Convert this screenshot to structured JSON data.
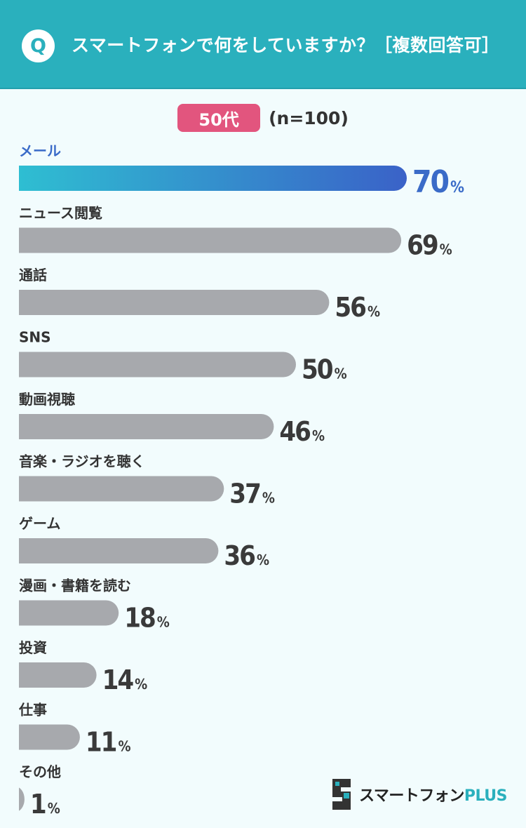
{
  "header": {
    "badge": "Q",
    "question": "スマートフォンで何をしていますか？［複数回答可］"
  },
  "group": {
    "label": "50代",
    "sample": "(n=100)"
  },
  "logo": {
    "main": "スマートフォン",
    "plus": "PLUS"
  },
  "colors": {
    "header": "#2ab0bd",
    "badge": "#e2557e",
    "bar": "#a7a9ad",
    "highlight_start": "#2ec1d2",
    "highlight_end": "#3a62c8"
  },
  "chart_data": {
    "type": "bar",
    "orientation": "horizontal",
    "unit": "%",
    "categories": [
      "メール",
      "ニュース閲覧",
      "通話",
      "SNS",
      "動画視聴",
      "音楽・ラジオを聴く",
      "ゲーム",
      "漫画・書籍を読む",
      "投資",
      "仕事",
      "その他"
    ],
    "values": [
      70,
      69,
      56,
      50,
      46,
      37,
      36,
      18,
      14,
      11,
      1
    ],
    "highlight_index": 0,
    "xlim": [
      0,
      100
    ],
    "grid": false,
    "legend": "none"
  }
}
